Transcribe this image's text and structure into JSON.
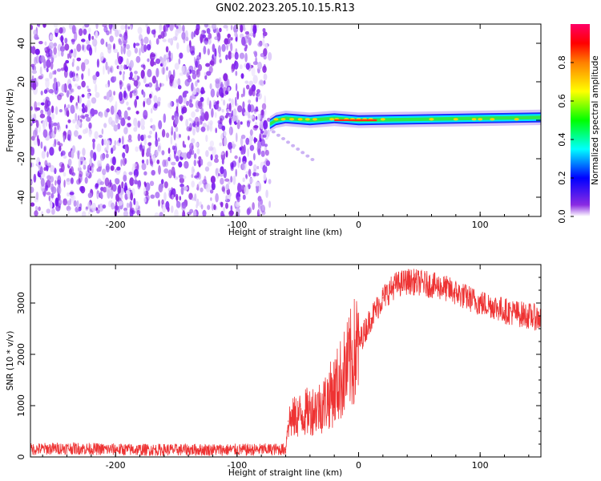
{
  "title": "GN02.2023.205.10.15.R13",
  "chart_data": [
    {
      "type": "heatmap",
      "xlabel": "Height of straight line (km)",
      "ylabel": "Frequency (Hz)",
      "xlim": [
        -270,
        150
      ],
      "ylim": [
        -50,
        50
      ],
      "x_ticks": [
        -200,
        -100,
        0,
        100
      ],
      "x_tick_labels": [
        "-200",
        "-100",
        "0",
        "100"
      ],
      "y_ticks": [
        -40,
        -20,
        0,
        20,
        40
      ],
      "y_tick_labels": [
        "-40",
        "-20",
        "0",
        "20",
        "40"
      ],
      "noise_region_x": [
        -270,
        -73
      ],
      "meteor_trail_x": [
        -73,
        150
      ],
      "trail_center_frequency": [
        {
          "x": -73,
          "y": -2
        },
        {
          "x": -68,
          "y": 0
        },
        {
          "x": -60,
          "y": 1
        },
        {
          "x": -40,
          "y": 0
        },
        {
          "x": -20,
          "y": 1
        },
        {
          "x": 0,
          "y": 0
        },
        {
          "x": 50,
          "y": 0.5
        },
        {
          "x": 100,
          "y": 1
        },
        {
          "x": 150,
          "y": 1.5
        }
      ],
      "colorbar": {
        "label": "Normalized spectral amplitude",
        "range": [
          0,
          1
        ],
        "ticks": [
          0.0,
          0.2,
          0.4,
          0.6,
          0.8
        ],
        "tick_labels": [
          "0.0",
          "0.2",
          "0.4",
          "0.6",
          "0.8"
        ],
        "colors": [
          "#ffffff",
          "#8b2be2",
          "#0000ff",
          "#00ffff",
          "#00ff00",
          "#ffff00",
          "#ff8000",
          "#ff0000",
          "#ff0066"
        ]
      },
      "grid": false
    },
    {
      "type": "line",
      "xlabel": "Height of straight line (km)",
      "ylabel": "SNR (10 * v/v)",
      "xlim": [
        -270,
        150
      ],
      "ylim": [
        0,
        3750
      ],
      "x_ticks": [
        -200,
        -100,
        0,
        100
      ],
      "x_tick_labels": [
        "-200",
        "-100",
        "0",
        "100"
      ],
      "y_ticks": [
        0,
        1000,
        2000,
        3000
      ],
      "y_tick_labels": [
        "0",
        "1000",
        "2000",
        "3000"
      ],
      "color": "#ee3333",
      "series": [
        {
          "x": [
            -270,
            -240,
            -210,
            -180,
            -150,
            -120,
            -90,
            -60,
            -58,
            -50,
            -40,
            -30,
            -20,
            -10,
            0,
            10,
            20,
            30,
            40,
            50,
            60,
            70,
            80,
            90,
            100,
            110,
            120,
            130,
            140,
            150
          ],
          "y": [
            150,
            170,
            150,
            140,
            140,
            140,
            140,
            150,
            700,
            800,
            900,
            1000,
            1300,
            1700,
            2200,
            2700,
            3100,
            3350,
            3420,
            3400,
            3350,
            3300,
            3200,
            3100,
            3000,
            2950,
            2850,
            2800,
            2750,
            2700
          ]
        }
      ],
      "grid": false
    }
  ]
}
